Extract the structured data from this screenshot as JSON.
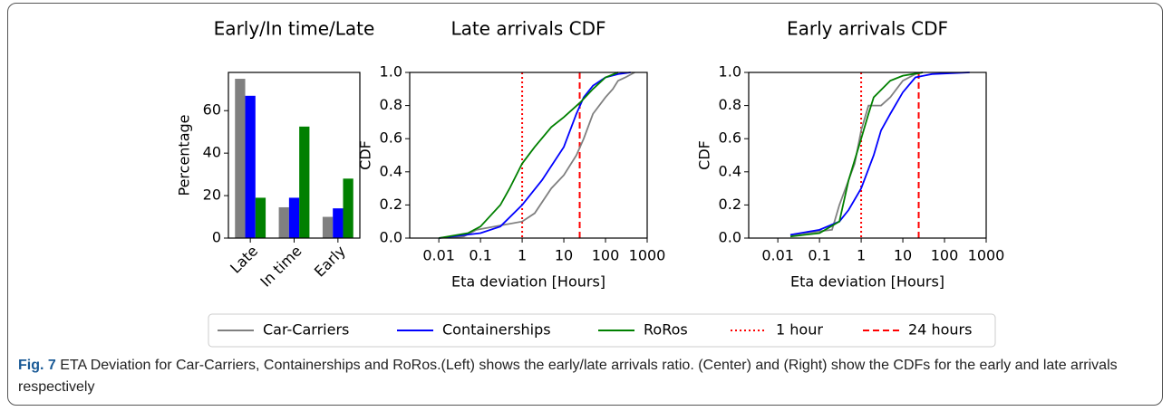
{
  "chart_data": [
    {
      "type": "bar",
      "title": "Early/In time/Late",
      "y_label": "Percentage",
      "categories": [
        "Late",
        "In time",
        "Early"
      ],
      "series": [
        {
          "name": "Car-Carriers",
          "color": "#808080",
          "values": [
            75,
            14.5,
            10
          ]
        },
        {
          "name": "Containerships",
          "color": "#0000ff",
          "values": [
            67,
            19,
            14
          ]
        },
        {
          "name": "RoRos",
          "color": "#008000",
          "values": [
            19,
            52.5,
            28
          ]
        }
      ],
      "ylim": [
        0,
        78
      ],
      "yticks": [
        0,
        20,
        40,
        60
      ],
      "grid": false
    },
    {
      "type": "line",
      "title": "Late arrivals CDF",
      "x_label": "Eta deviation [Hours]",
      "y_label": "CDF",
      "xscale": "log",
      "xlim": [
        0.002,
        1000
      ],
      "xticks": [
        0.01,
        0.1,
        1,
        10,
        100,
        1000
      ],
      "ylim": [
        0,
        1
      ],
      "yticks": [
        {
          "value": 0,
          "label": "0.0"
        },
        {
          "value": 0.2,
          "label": "0.2"
        },
        {
          "value": 0.4,
          "label": "0.4"
        },
        {
          "value": 0.6,
          "label": "0.6"
        },
        {
          "value": 0.8,
          "label": "0.8"
        },
        {
          "value": 1,
          "label": "1.0"
        }
      ],
      "grid": false,
      "series": [
        {
          "name": "Car-Carriers",
          "color": "#808080",
          "x": [
            0.01,
            0.04,
            0.08,
            1,
            2,
            5,
            10,
            20,
            30,
            50,
            100,
            150,
            200,
            300,
            500
          ],
          "values": [
            0,
            0.01,
            0.05,
            0.1,
            0.15,
            0.3,
            0.38,
            0.5,
            0.6,
            0.75,
            0.85,
            0.9,
            0.95,
            0.97,
            1
          ]
        },
        {
          "name": "Containerships",
          "color": "#0000ff",
          "x": [
            0.01,
            0.1,
            0.3,
            1,
            3,
            10,
            20,
            30,
            50,
            100,
            200,
            400
          ],
          "values": [
            0,
            0.03,
            0.07,
            0.2,
            0.35,
            0.55,
            0.75,
            0.85,
            0.92,
            0.97,
            0.99,
            1
          ]
        },
        {
          "name": "RoRos",
          "color": "#008000",
          "x": [
            0.01,
            0.05,
            0.1,
            0.3,
            0.5,
            1,
            2,
            5,
            10,
            25,
            50,
            100,
            200
          ],
          "values": [
            0,
            0.03,
            0.07,
            0.2,
            0.3,
            0.45,
            0.55,
            0.67,
            0.73,
            0.82,
            0.9,
            0.97,
            1
          ]
        }
      ],
      "reference_lines": [
        {
          "name": "1 hour",
          "value": 1,
          "color": "#ff0000",
          "style": "dotted"
        },
        {
          "name": "24 hours",
          "value": 24,
          "color": "#ff0000",
          "style": "dashed"
        }
      ]
    },
    {
      "type": "line",
      "title": "Early arrivals CDF",
      "x_label": "Eta deviation [Hours]",
      "y_label": "CDF",
      "xscale": "log",
      "xlim": [
        0.002,
        1000
      ],
      "xticks": [
        0.01,
        0.1,
        1,
        10,
        100,
        1000
      ],
      "ylim": [
        0,
        1
      ],
      "yticks": [
        {
          "value": 0,
          "label": "0.0"
        },
        {
          "value": 0.2,
          "label": "0.2"
        },
        {
          "value": 0.4,
          "label": "0.4"
        },
        {
          "value": 0.6,
          "label": "0.6"
        },
        {
          "value": 0.8,
          "label": "0.8"
        },
        {
          "value": 1,
          "label": "1.0"
        }
      ],
      "grid": false,
      "series": [
        {
          "name": "Car-Carriers",
          "color": "#808080",
          "x": [
            0.02,
            0.2,
            0.3,
            0.5,
            0.7,
            1,
            1.5,
            3,
            5,
            10,
            20,
            30
          ],
          "values": [
            0.02,
            0.05,
            0.2,
            0.35,
            0.45,
            0.65,
            0.8,
            0.8,
            0.85,
            0.95,
            0.99,
            1
          ]
        },
        {
          "name": "Containerships",
          "color": "#0000ff",
          "x": [
            0.02,
            0.1,
            0.3,
            0.5,
            1,
            2,
            3,
            5,
            10,
            20,
            50,
            400
          ],
          "values": [
            0.02,
            0.05,
            0.1,
            0.17,
            0.3,
            0.5,
            0.65,
            0.75,
            0.88,
            0.97,
            0.99,
            1
          ]
        },
        {
          "name": "RoRos",
          "color": "#008000",
          "x": [
            0.02,
            0.1,
            0.3,
            0.5,
            1,
            1.5,
            2,
            5,
            10,
            30
          ],
          "values": [
            0.01,
            0.03,
            0.1,
            0.35,
            0.6,
            0.75,
            0.85,
            0.95,
            0.98,
            1
          ]
        }
      ],
      "reference_lines": [
        {
          "name": "1 hour",
          "value": 1,
          "color": "#ff0000",
          "style": "dotted"
        },
        {
          "name": "24 hours",
          "value": 24,
          "color": "#ff0000",
          "style": "dashed"
        }
      ]
    }
  ],
  "caption": {
    "label": "Fig. 7",
    "text": "ETA Deviation for Car-Carriers, Containerships and RoRos.(Left) shows the early/late arrivals ratio. (Center) and (Right) show the CDFs for the early and late arrivals respectively"
  }
}
